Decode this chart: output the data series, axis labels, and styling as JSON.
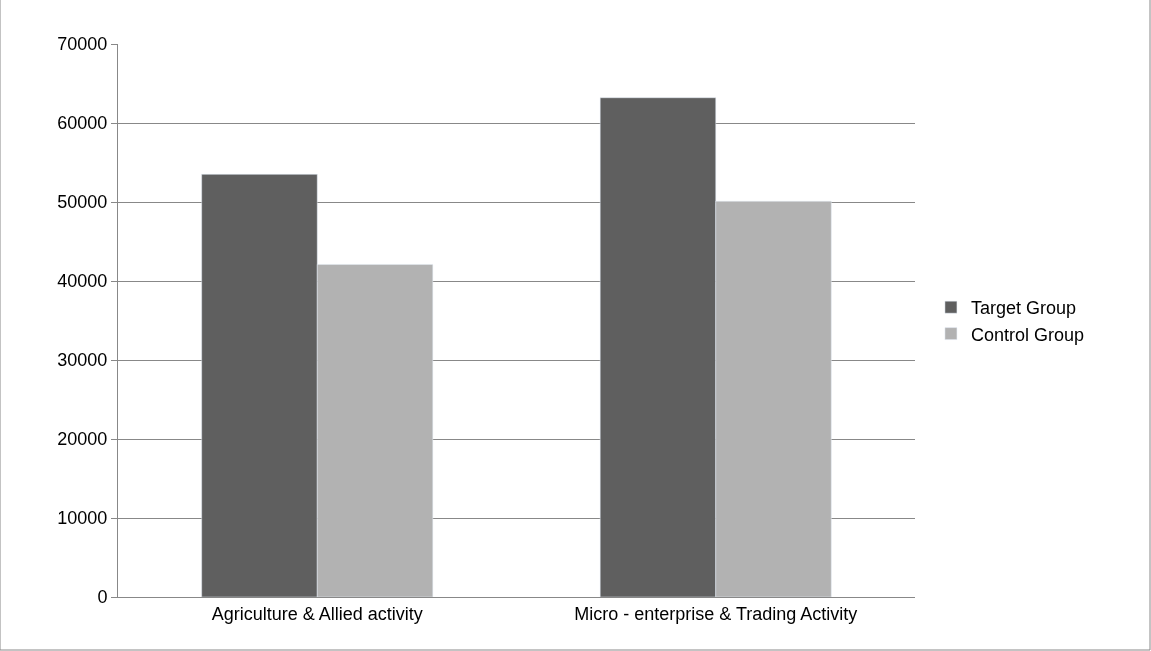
{
  "chart_data": {
    "type": "bar",
    "categories": [
      "Agriculture & Allied activity",
      "Micro - enterprise & Trading Activity"
    ],
    "series": [
      {
        "name": "Target Group",
        "color": "#5f5f5f",
        "values": [
          53500,
          63200
        ]
      },
      {
        "name": "Control Group",
        "color": "#b2b2b2",
        "values": [
          42100,
          50100
        ]
      }
    ],
    "ylim": [
      0,
      70000
    ],
    "yticks": [
      0,
      10000,
      20000,
      30000,
      40000,
      50000,
      60000,
      70000
    ],
    "grid": "y",
    "legend": "right"
  }
}
